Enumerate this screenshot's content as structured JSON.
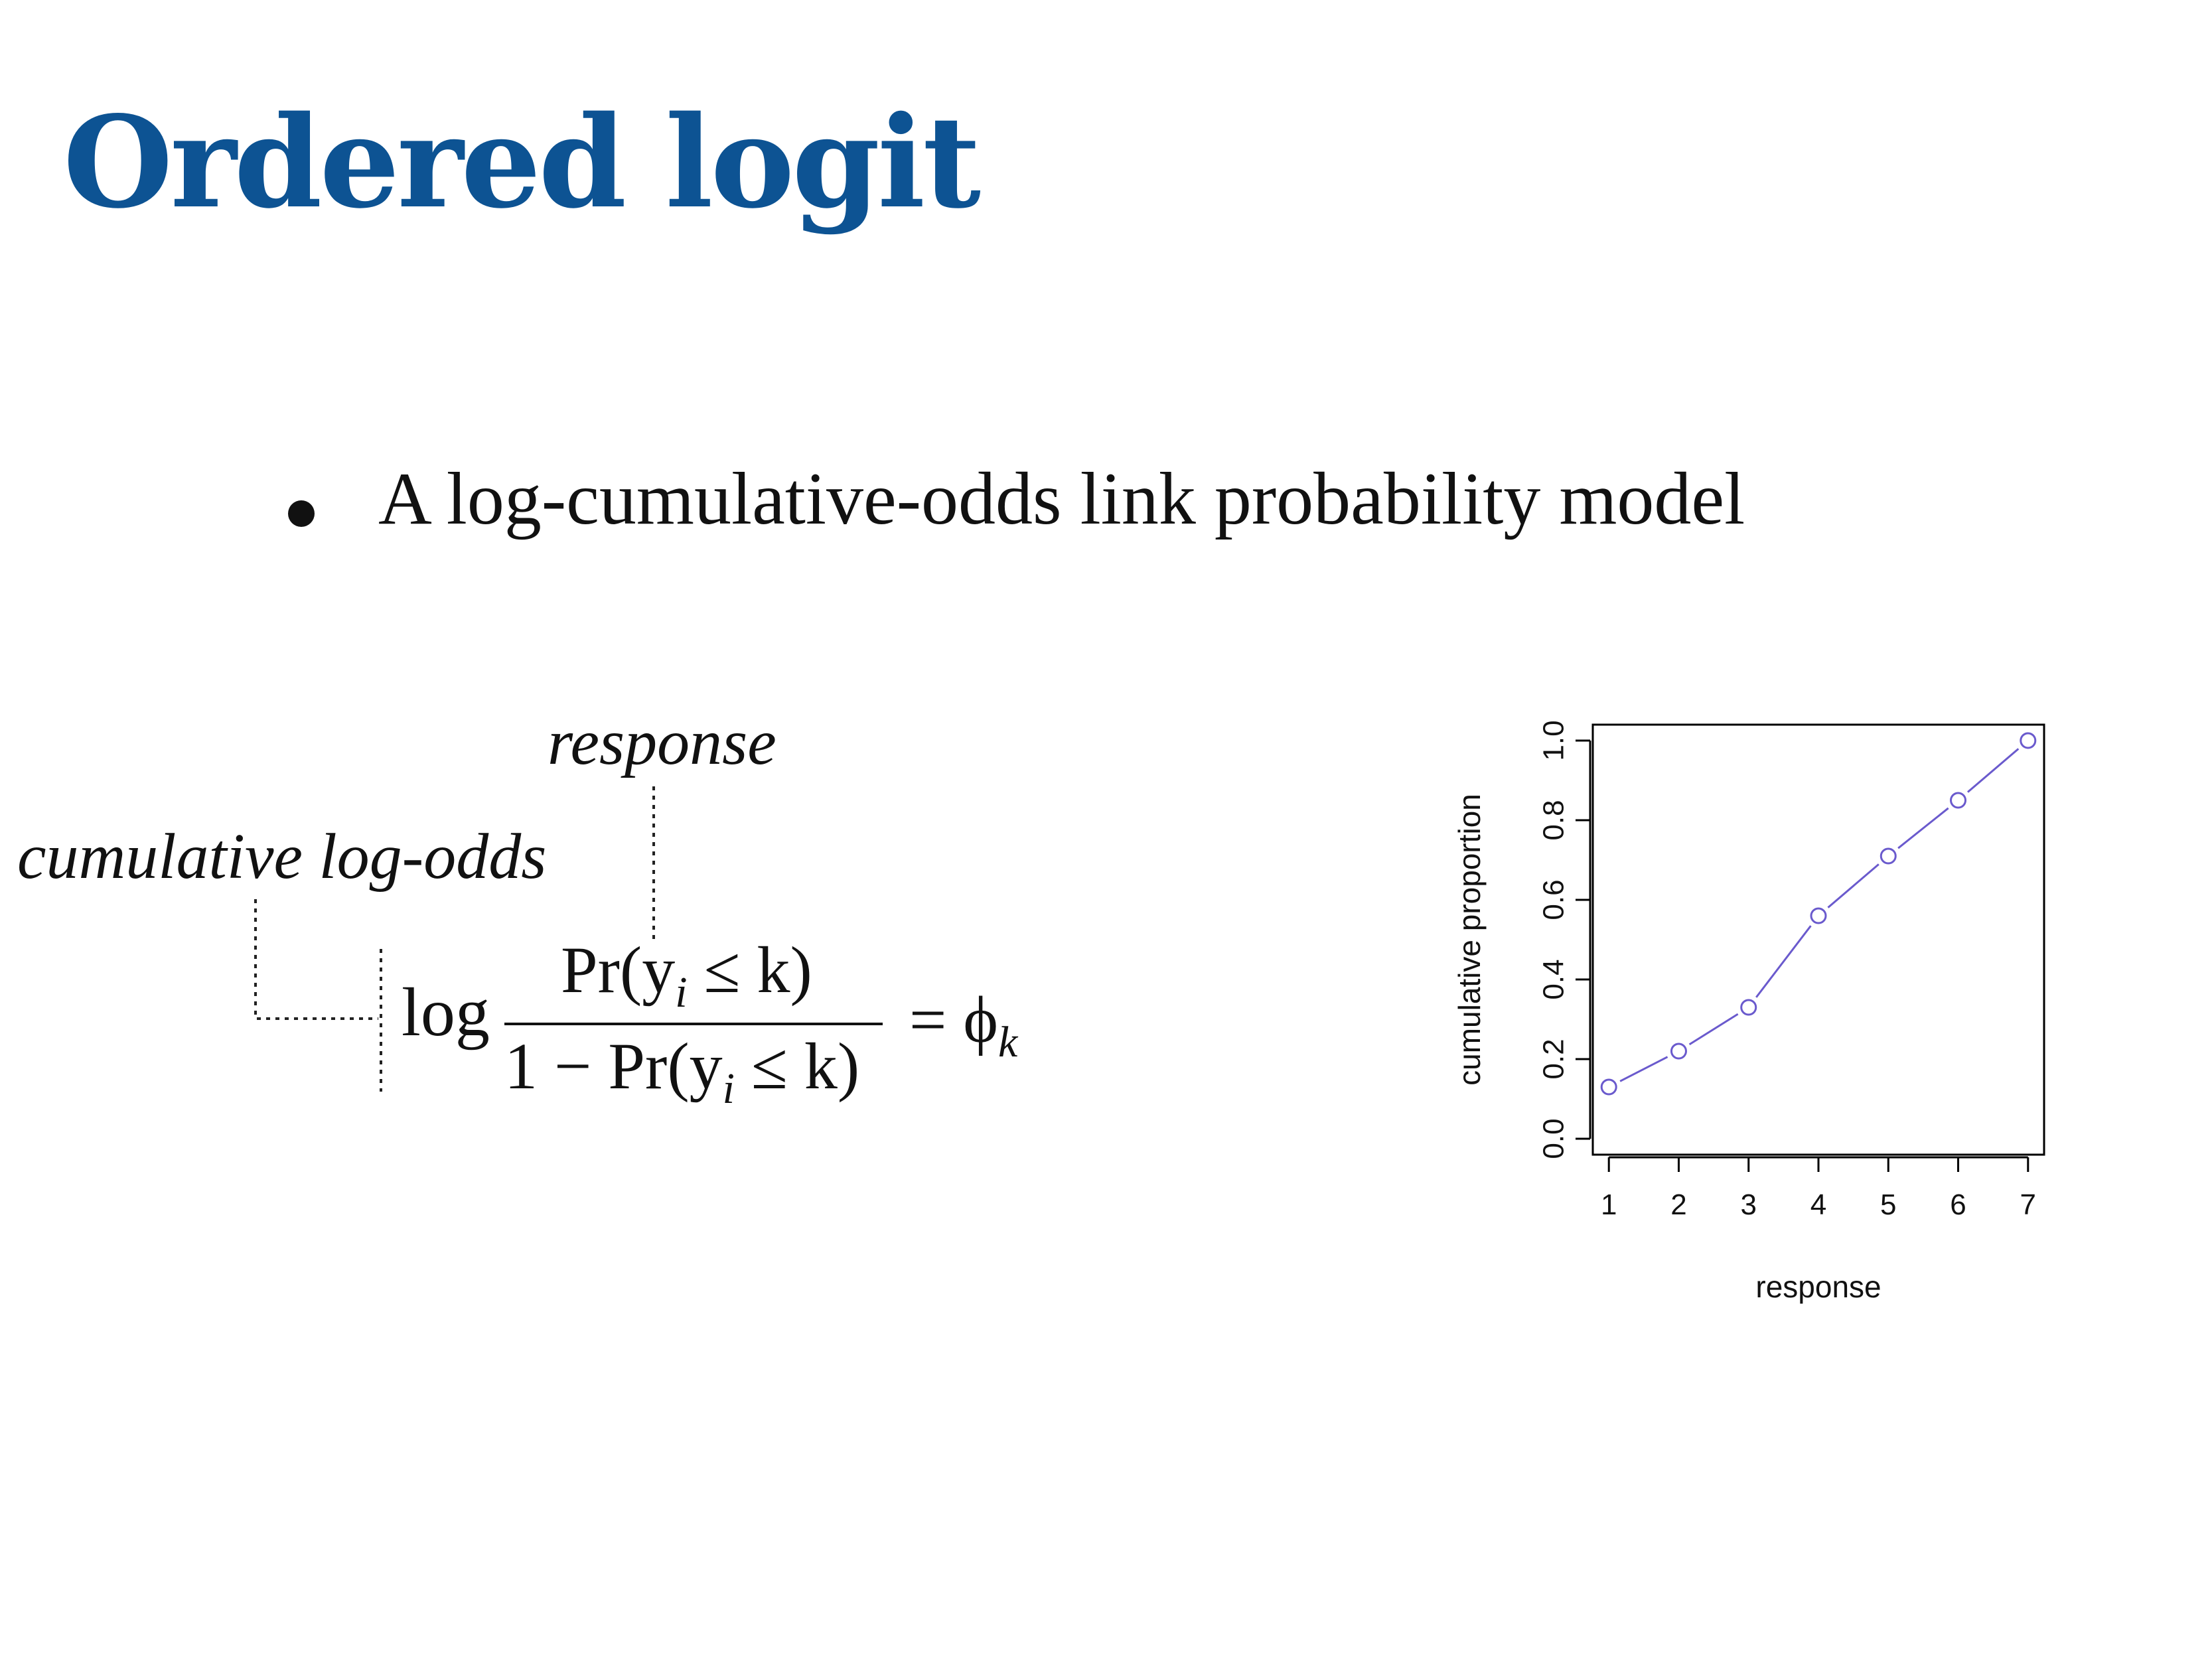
{
  "title": "Ordered logit",
  "title_color": "#0d5393",
  "bullet": {
    "text": "A log-cumulative-odds link probability model"
  },
  "formula": {
    "annotation_response": "response",
    "annotation_cumulative": "cumulative log-odds",
    "log": "log",
    "numerator": "Pr(y",
    "numerator_sub": "i",
    "numerator_rest": " ≤ k)",
    "denominator": "1 − Pr(y",
    "denominator_sub": "i",
    "denominator_rest": " ≤ k)",
    "rhs": "= ϕ",
    "rhs_sub": "k"
  },
  "chart_data": {
    "type": "line",
    "x": [
      1,
      2,
      3,
      4,
      5,
      6,
      7
    ],
    "values": [
      0.13,
      0.22,
      0.33,
      0.56,
      0.71,
      0.85,
      1.0
    ],
    "xlabel": "response",
    "ylabel": "cumulative proportion",
    "xlim": [
      0.77,
      7.23
    ],
    "ylim": [
      -0.04,
      1.04
    ],
    "x_ticks": [
      "1",
      "2",
      "3",
      "4",
      "5",
      "6",
      "7"
    ],
    "y_ticks": [
      "0.0",
      "0.2",
      "0.4",
      "0.6",
      "0.8",
      "1.0"
    ],
    "markers": "open-circle",
    "series_color": "#6a5acd",
    "grid": false
  }
}
